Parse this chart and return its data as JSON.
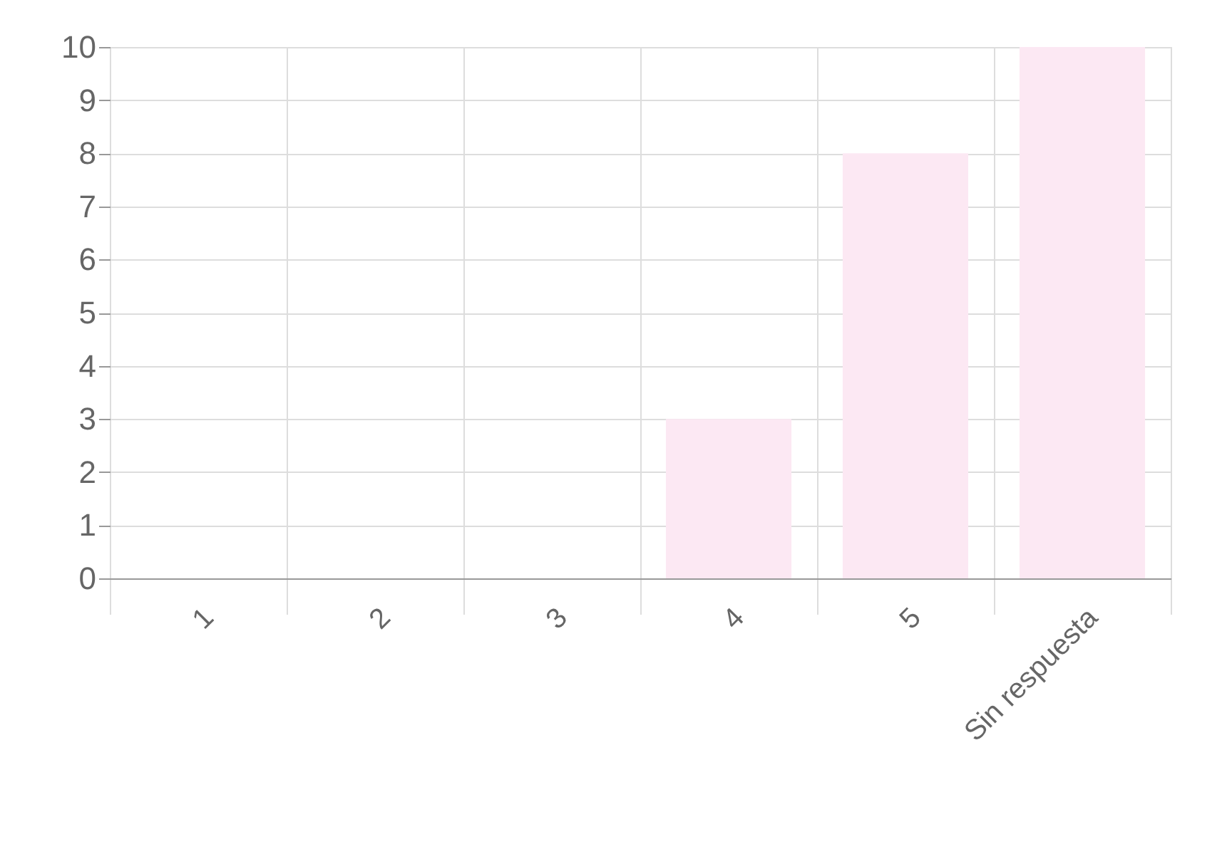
{
  "chart_data": {
    "type": "bar",
    "categories": [
      "1",
      "2",
      "3",
      "4",
      "5",
      "Sin respuesta"
    ],
    "values": [
      0,
      0,
      0,
      3,
      8,
      10
    ],
    "color": "#fce8f3",
    "ylim": [
      0,
      10
    ],
    "yticks": [
      0,
      1,
      2,
      3,
      4,
      5,
      6,
      7,
      8,
      9,
      10
    ],
    "grid": true
  }
}
